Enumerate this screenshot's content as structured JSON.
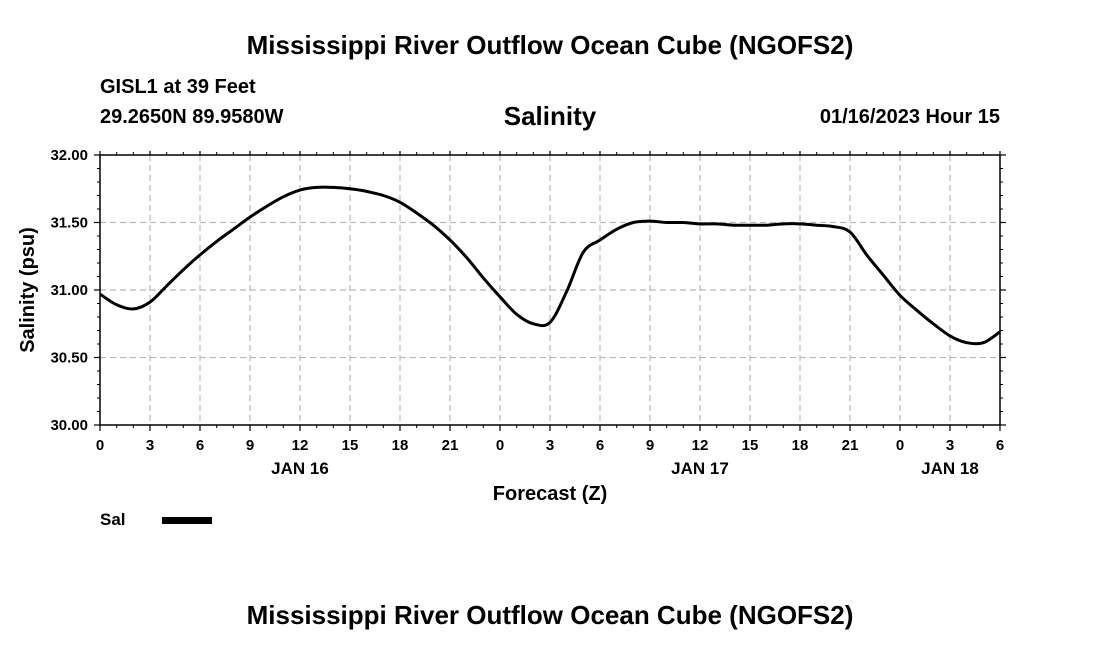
{
  "header": {
    "title": "Mississippi River Outflow Ocean Cube (NGOFS2)",
    "station": "GISL1 at 39 Feet",
    "coords": "29.2650N  89.9580W",
    "variable": "Salinity",
    "datetime": "01/16/2023 Hour 15"
  },
  "footer": {
    "title": "Mississippi River Outflow Ocean Cube (NGOFS2)"
  },
  "chart_data": {
    "type": "line",
    "title": "Salinity",
    "xlabel": "Forecast (Z)",
    "ylabel": "Salinity (psu)",
    "ylim": [
      30.0,
      32.0
    ],
    "xlim_hours": [
      0,
      54
    ],
    "grid": true,
    "y_ticks": [
      "30.00",
      "30.50",
      "31.00",
      "31.50",
      "32.00"
    ],
    "y_tick_values": [
      30.0,
      30.5,
      31.0,
      31.5,
      32.0
    ],
    "x_ticks": [
      {
        "hour": 0,
        "label": "0"
      },
      {
        "hour": 3,
        "label": "3"
      },
      {
        "hour": 6,
        "label": "6"
      },
      {
        "hour": 9,
        "label": "9"
      },
      {
        "hour": 12,
        "label": "12"
      },
      {
        "hour": 15,
        "label": "15"
      },
      {
        "hour": 18,
        "label": "18"
      },
      {
        "hour": 21,
        "label": "21"
      },
      {
        "hour": 24,
        "label": "0"
      },
      {
        "hour": 27,
        "label": "3"
      },
      {
        "hour": 30,
        "label": "6"
      },
      {
        "hour": 33,
        "label": "9"
      },
      {
        "hour": 36,
        "label": "12"
      },
      {
        "hour": 39,
        "label": "15"
      },
      {
        "hour": 42,
        "label": "18"
      },
      {
        "hour": 45,
        "label": "21"
      },
      {
        "hour": 48,
        "label": "0"
      },
      {
        "hour": 51,
        "label": "3"
      },
      {
        "hour": 54,
        "label": "6"
      }
    ],
    "date_labels": [
      {
        "hour": 12,
        "label": "JAN 16"
      },
      {
        "hour": 36,
        "label": "JAN 17"
      },
      {
        "hour": 51,
        "label": "JAN 18"
      }
    ],
    "legend": {
      "placement": "bottom-left"
    },
    "series": [
      {
        "name": "Sal",
        "color": "#000000",
        "x": [
          0,
          1,
          2,
          3,
          4,
          5,
          6,
          7,
          8,
          9,
          10,
          11,
          12,
          13,
          14,
          15,
          16,
          17,
          18,
          19,
          20,
          21,
          22,
          23,
          24,
          25,
          26,
          27,
          28,
          29,
          30,
          31,
          32,
          33,
          34,
          35,
          36,
          37,
          38,
          39,
          40,
          41,
          42,
          43,
          44,
          45,
          46,
          47,
          48,
          49,
          50,
          51,
          52,
          53,
          54
        ],
        "y": [
          30.97,
          30.89,
          30.86,
          30.91,
          31.03,
          31.15,
          31.26,
          31.36,
          31.45,
          31.54,
          31.62,
          31.69,
          31.74,
          31.76,
          31.76,
          31.75,
          31.73,
          31.7,
          31.65,
          31.57,
          31.48,
          31.37,
          31.24,
          31.09,
          30.95,
          30.82,
          30.75,
          30.76,
          30.99,
          31.28,
          31.37,
          31.45,
          31.5,
          31.51,
          31.5,
          31.5,
          31.49,
          31.49,
          31.48,
          31.48,
          31.48,
          31.49,
          31.49,
          31.48,
          31.47,
          31.43,
          31.26,
          31.11,
          30.96,
          30.85,
          30.75,
          30.66,
          30.61,
          30.61,
          30.69
        ]
      }
    ]
  }
}
